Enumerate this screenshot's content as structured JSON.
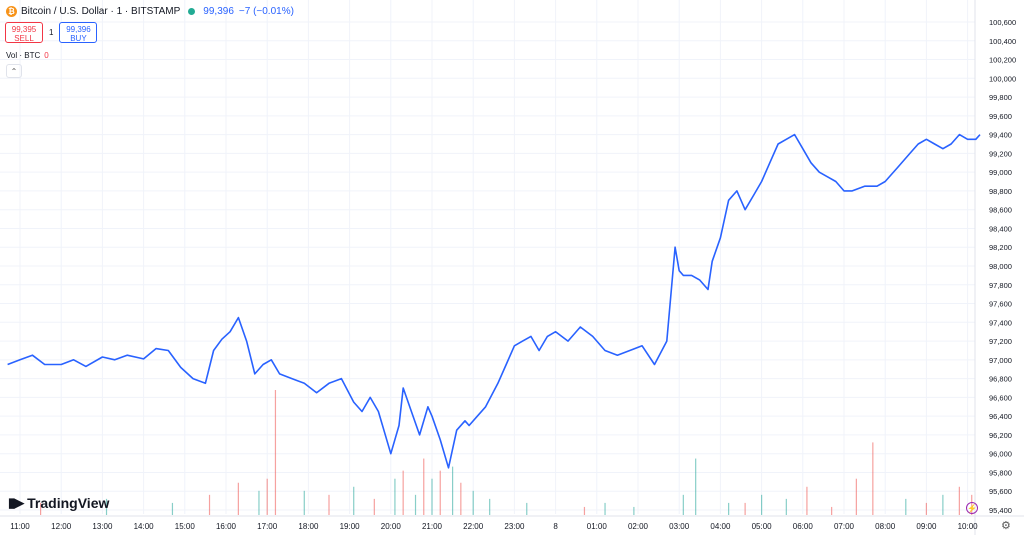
{
  "header": {
    "title": "Bitcoin / U.S. Dollar · 1 · BITSTAMP",
    "coin_icon": "btc-icon",
    "last_price": "99,396",
    "change": "−7 (−0.01%)",
    "sell_price": "99,395",
    "sell_label": "SELL",
    "spread": "1",
    "buy_price": "99,396",
    "buy_label": "BUY",
    "volume_label": "Vol · BTC",
    "volume_value": "0"
  },
  "brand": {
    "name": "TradingView"
  },
  "colors": {
    "line": "#2962ff",
    "vol_up": "#26a69a",
    "vol_down": "#ef5350",
    "grid": "#f0f3fa"
  },
  "chart_data": {
    "type": "line",
    "y_ticks": [
      "95,400",
      "95,600",
      "95,800",
      "96,000",
      "96,200",
      "96,400",
      "96,600",
      "96,800",
      "97,000",
      "97,200",
      "97,400",
      "97,600",
      "97,800",
      "98,000",
      "98,200",
      "98,400",
      "98,600",
      "98,800",
      "99,000",
      "99,200",
      "99,400",
      "99,600",
      "99,800",
      "100,000",
      "100,200",
      "100,400",
      "100,600"
    ],
    "ylim": [
      95400,
      100600
    ],
    "x_ticks": [
      "11:00",
      "12:00",
      "13:00",
      "14:00",
      "15:00",
      "16:00",
      "17:00",
      "18:00",
      "19:00",
      "20:00",
      "21:00",
      "22:00",
      "23:00",
      "8",
      "01:00",
      "02:00",
      "03:00",
      "04:00",
      "05:00",
      "06:00",
      "07:00",
      "08:00",
      "09:00",
      "10:00"
    ],
    "series": [
      {
        "x": [
          -0.3,
          0.0,
          0.3,
          0.6,
          1.0,
          1.3,
          1.6,
          2.0,
          2.3,
          2.6,
          3.0,
          3.3,
          3.6,
          3.9,
          4.2,
          4.5,
          4.7,
          4.9,
          5.1,
          5.3,
          5.5,
          5.7,
          5.9,
          6.1,
          6.3,
          6.6,
          6.9,
          7.2,
          7.5,
          7.8,
          8.1,
          8.3,
          8.5,
          8.7,
          9.0,
          9.2,
          9.3,
          9.5,
          9.7,
          9.9,
          10.0,
          10.2,
          10.4,
          10.6,
          10.8,
          10.9,
          11.1,
          11.3,
          11.6,
          11.8,
          12.0,
          12.2,
          12.4,
          12.6,
          12.8,
          13.0,
          13.3,
          13.6,
          13.9,
          14.2,
          14.5,
          14.8,
          15.1,
          15.4,
          15.7,
          15.9,
          16.0,
          16.1,
          16.3,
          16.5,
          16.7,
          16.8,
          17.0,
          17.2,
          17.4,
          17.6,
          17.8,
          18.0,
          18.2,
          18.4,
          18.6,
          18.8,
          19.0,
          19.2,
          19.4,
          19.6,
          19.8,
          20.0,
          20.2,
          20.5,
          20.8,
          21.0,
          21.3,
          21.6,
          21.8,
          22.0,
          22.2,
          22.4,
          22.6,
          22.8,
          23.0,
          23.2,
          23.3
        ],
        "y": [
          96950,
          97000,
          97050,
          96950,
          96950,
          97000,
          96930,
          97030,
          97000,
          97050,
          97010,
          97120,
          97100,
          96920,
          96800,
          96750,
          97100,
          97220,
          97300,
          97450,
          97200,
          96850,
          96950,
          97000,
          96850,
          96800,
          96750,
          96650,
          96750,
          96800,
          96550,
          96450,
          96600,
          96450,
          96000,
          96300,
          96700,
          96450,
          96200,
          96500,
          96400,
          96150,
          95850,
          96250,
          96350,
          96300,
          96400,
          96500,
          96750,
          96950,
          97150,
          97200,
          97250,
          97100,
          97250,
          97300,
          97200,
          97350,
          97250,
          97100,
          97050,
          97100,
          97150,
          96950,
          97200,
          98200,
          97950,
          97900,
          97900,
          97850,
          97750,
          98050,
          98300,
          98700,
          98800,
          98600,
          98750,
          98900,
          99100,
          99300,
          99350,
          99400,
          99250,
          99100,
          99000,
          98950,
          98900,
          98800,
          98800,
          98850,
          98850,
          98900,
          99050,
          99200,
          99300,
          99350,
          99300,
          99250,
          99300,
          99400,
          99350,
          99350,
          99400
        ]
      }
    ],
    "volume": {
      "x": [
        0.5,
        2.1,
        3.7,
        4.6,
        5.3,
        5.8,
        6.0,
        6.2,
        6.9,
        7.5,
        8.1,
        8.6,
        9.1,
        9.3,
        9.6,
        9.8,
        10.0,
        10.2,
        10.5,
        10.7,
        11.0,
        11.4,
        12.3,
        13.7,
        14.2,
        14.9,
        16.1,
        16.4,
        17.2,
        17.6,
        18.0,
        18.6,
        19.1,
        19.7,
        20.3,
        20.7,
        21.5,
        22.0,
        22.4,
        22.8,
        23.1
      ],
      "values": [
        3,
        4,
        3,
        5,
        8,
        6,
        9,
        31,
        6,
        5,
        7,
        4,
        9,
        11,
        5,
        14,
        9,
        11,
        12,
        8,
        6,
        4,
        3,
        2,
        3,
        2,
        5,
        14,
        3,
        3,
        5,
        4,
        7,
        2,
        9,
        18,
        4,
        3,
        5,
        7,
        5
      ],
      "direction": [
        "d",
        "u",
        "u",
        "d",
        "d",
        "u",
        "d",
        "d",
        "u",
        "d",
        "u",
        "d",
        "u",
        "d",
        "u",
        "d",
        "u",
        "d",
        "u",
        "d",
        "u",
        "u",
        "u",
        "d",
        "u",
        "u",
        "u",
        "u",
        "u",
        "d",
        "u",
        "u",
        "d",
        "d",
        "d",
        "d",
        "u",
        "d",
        "u",
        "d",
        "d"
      ]
    }
  }
}
